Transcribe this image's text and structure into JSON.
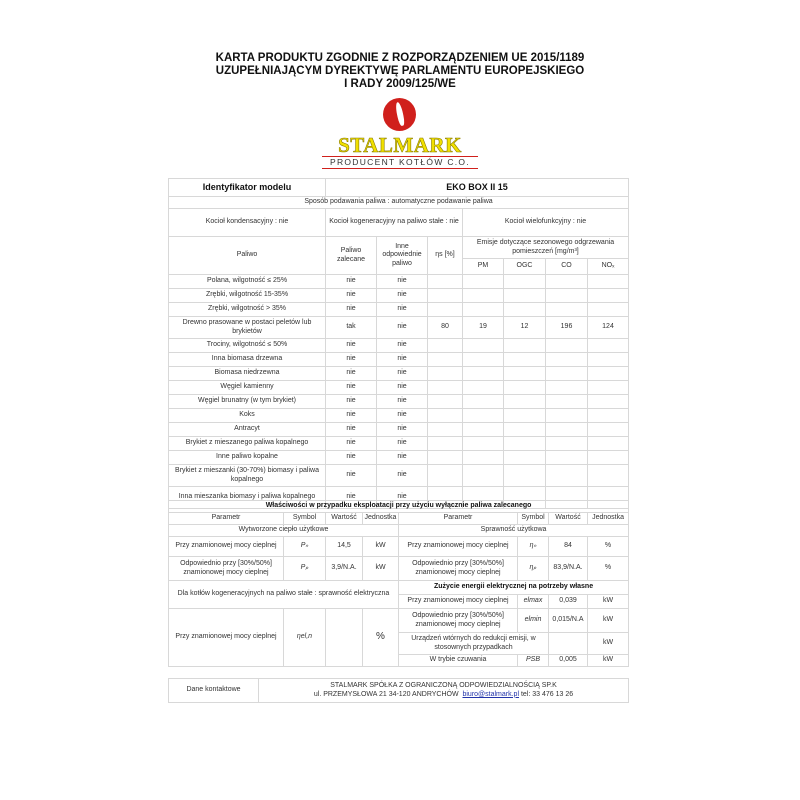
{
  "title": {
    "line1": "KARTA PRODUKTU ZGODNIE Z ROZPORZĄDZENIEM UE 2015/1189",
    "line2": "UZUPEŁNIAJĄCYM DYREKTYWĘ PARLAMENTU EUROPEJSKIEGO",
    "line3": "I RADY 2009/125/WE"
  },
  "logo": {
    "brand": "STALMARK",
    "tagline": "PRODUCENT KOTŁÓW C.O.",
    "colors": {
      "flame": "#d0201c",
      "brand": "#f1e000"
    }
  },
  "model": {
    "label": "Identyfikator modelu",
    "value": "EKO BOX II 15"
  },
  "feed": "Sposób podawania paliwa : automatyczne podawanie paliwa",
  "flags": {
    "condensing": "Kocioł kondensacyjny : nie",
    "cogeneration": "Kocioł kogeneracyjny na paliwo stałe : nie",
    "multifunction": "Kocioł wielofunkcyjny : nie"
  },
  "fuel_headers": {
    "fuel": "Paliwo",
    "preferred": "Paliwo zalecane",
    "other": "Inne odpowiednie paliwo",
    "eta": "ηs [%]",
    "emissions": "Emisje dotyczące sezonowego odgrzewania pomieszczeń [mg/m³]",
    "pm": "PM",
    "ogc": "OGC",
    "co": "CO",
    "nox": "NOₓ"
  },
  "fuels": [
    {
      "name": "Polana, wilgotność ≤ 25%",
      "preferred": "nie",
      "other": "nie",
      "eta": "",
      "pm": "",
      "ogc": "",
      "co": "",
      "nox": ""
    },
    {
      "name": "Zrębki, wilgotność 15-35%",
      "preferred": "nie",
      "other": "nie",
      "eta": "",
      "pm": "",
      "ogc": "",
      "co": "",
      "nox": ""
    },
    {
      "name": "Zrębki, wilgotność > 35%",
      "preferred": "nie",
      "other": "nie",
      "eta": "",
      "pm": "",
      "ogc": "",
      "co": "",
      "nox": ""
    },
    {
      "name": "Drewno prasowane w postaci peletów lub brykietów",
      "preferred": "tak",
      "other": "nie",
      "eta": "80",
      "pm": "19",
      "ogc": "12",
      "co": "196",
      "nox": "124"
    },
    {
      "name": "Trociny, wilgotność ≤ 50%",
      "preferred": "nie",
      "other": "nie",
      "eta": "",
      "pm": "",
      "ogc": "",
      "co": "",
      "nox": ""
    },
    {
      "name": "Inna biomasa drzewna",
      "preferred": "nie",
      "other": "nie",
      "eta": "",
      "pm": "",
      "ogc": "",
      "co": "",
      "nox": ""
    },
    {
      "name": "Biomasa niedrzewna",
      "preferred": "nie",
      "other": "nie",
      "eta": "",
      "pm": "",
      "ogc": "",
      "co": "",
      "nox": ""
    },
    {
      "name": "Węgiel kamienny",
      "preferred": "nie",
      "other": "nie",
      "eta": "",
      "pm": "",
      "ogc": "",
      "co": "",
      "nox": ""
    },
    {
      "name": "Węgiel brunatny (w tym brykiet)",
      "preferred": "nie",
      "other": "nie",
      "eta": "",
      "pm": "",
      "ogc": "",
      "co": "",
      "nox": ""
    },
    {
      "name": "Koks",
      "preferred": "nie",
      "other": "nie",
      "eta": "",
      "pm": "",
      "ogc": "",
      "co": "",
      "nox": ""
    },
    {
      "name": "Antracyt",
      "preferred": "nie",
      "other": "nie",
      "eta": "",
      "pm": "",
      "ogc": "",
      "co": "",
      "nox": ""
    },
    {
      "name": "Brykiet z mieszanego paliwa kopalnego",
      "preferred": "nie",
      "other": "nie",
      "eta": "",
      "pm": "",
      "ogc": "",
      "co": "",
      "nox": ""
    },
    {
      "name": "Inne paliwo kopalne",
      "preferred": "nie",
      "other": "nie",
      "eta": "",
      "pm": "",
      "ogc": "",
      "co": "",
      "nox": ""
    },
    {
      "name": "Brykiet z mieszanki (30-70%) biomasy i paliwa kopalnego",
      "preferred": "nie",
      "other": "nie",
      "eta": "",
      "pm": "",
      "ogc": "",
      "co": "",
      "nox": ""
    },
    {
      "name": "Inna mieszanka biomasy i paliwa kopalnego",
      "preferred": "nie",
      "other": "nie",
      "eta": "",
      "pm": "",
      "ogc": "",
      "co": "",
      "nox": ""
    }
  ],
  "props": {
    "title": "Właściwości w przypadku eksploatacji przy użyciu wyłącznie paliwa zalecanego",
    "h_param": "Parametr",
    "h_symbol": "Symbol",
    "h_value": "Wartość",
    "h_unit": "Jednostka",
    "heat_output": "Wytworzone ciepło użytkowe",
    "efficiency": "Sprawność użytkowa",
    "nominal": "Przy znamionowej mocy cieplnej",
    "partial": "Odpowiednio przy [30%/50%] znamionowej mocy cieplnej",
    "pn_sym": "Pₙ",
    "pn_val": "14,5",
    "kw": "kW",
    "pp_sym": "Pₚ",
    "pp_val": "3,9/N.A.",
    "etan_sym": "ηₙ",
    "etan_val": "84",
    "pct": "%",
    "etap_sym": "ηₚ",
    "etap_val": "83,9/N.A.",
    "cogen": "Dla kotłów kogeneracyjnych na paliwo stałe : sprawność elektryczna",
    "etael_sym": "ηel,n",
    "etael_val": "",
    "electricity": "Zużycie energii elektrycznej na potrzeby własne",
    "elmax_sym": "elmax",
    "elmax_val": "0,039",
    "elmin_sym": "elmin",
    "elmin_val": "0,015/N.A",
    "emission_devices": "Urządzeń wtórnych do redukcji emisji, w stosownych przypadkach",
    "emission_val": "",
    "standby": "W trybie czuwania",
    "psb_sym": "PSB",
    "psb_val": "0,005"
  },
  "contact": {
    "label": "Dane kontaktowe",
    "company": "STALMARK SPÓŁKA Z OGRANICZONĄ ODPOWIEDZIALNOŚCIĄ SP.K",
    "address": "ul. PRZEMYSŁOWA 21  34-120 ANDRYCHÓW",
    "email": "biuro@stalmark.pl",
    "phone": "tel: 33 476 13 26"
  }
}
